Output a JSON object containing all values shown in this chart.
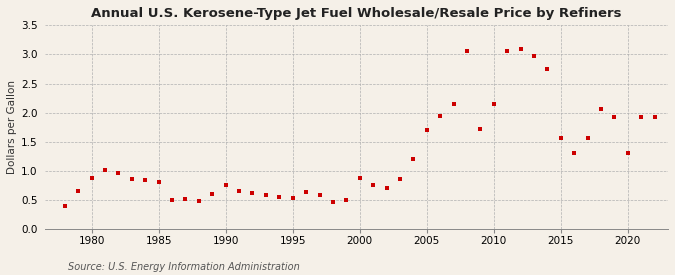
{
  "title": "Annual U.S. Kerosene-Type Jet Fuel Wholesale/Resale Price by Refiners",
  "ylabel": "Dollars per Gallon",
  "source": "Source: U.S. Energy Information Administration",
  "background_color": "#f5f0e8",
  "plot_bg_color": "#f5f0e8",
  "marker_color": "#cc0000",
  "xlim": [
    1976.5,
    2023
  ],
  "ylim": [
    0.0,
    3.5
  ],
  "xticks": [
    1980,
    1985,
    1990,
    1995,
    2000,
    2005,
    2010,
    2015,
    2020
  ],
  "yticks": [
    0.0,
    0.5,
    1.0,
    1.5,
    2.0,
    2.5,
    3.0,
    3.5
  ],
  "years": [
    1978,
    1979,
    1980,
    1981,
    1982,
    1983,
    1984,
    1985,
    1986,
    1987,
    1988,
    1989,
    1990,
    1991,
    1992,
    1993,
    1994,
    1995,
    1996,
    1997,
    1998,
    1999,
    2000,
    2001,
    2002,
    2003,
    2004,
    2005,
    2006,
    2007,
    2008,
    2009,
    2010,
    2011,
    2012,
    2013,
    2014,
    2015,
    2016,
    2017,
    2018,
    2019,
    2020,
    2021,
    2022
  ],
  "prices": [
    0.4,
    0.65,
    0.88,
    1.02,
    0.97,
    0.86,
    0.84,
    0.81,
    0.5,
    0.52,
    0.49,
    0.6,
    0.76,
    0.66,
    0.62,
    0.58,
    0.55,
    0.53,
    0.63,
    0.59,
    0.46,
    0.5,
    0.87,
    0.76,
    0.7,
    0.86,
    1.2,
    1.7,
    1.95,
    2.15,
    3.06,
    1.72,
    2.15,
    3.05,
    3.1,
    2.97,
    2.75,
    1.57,
    1.3,
    1.57,
    2.07,
    1.92,
    1.3,
    1.93,
    1.92
  ],
  "title_fontsize": 9.5,
  "tick_fontsize": 7.5,
  "ylabel_fontsize": 7.5,
  "source_fontsize": 7
}
